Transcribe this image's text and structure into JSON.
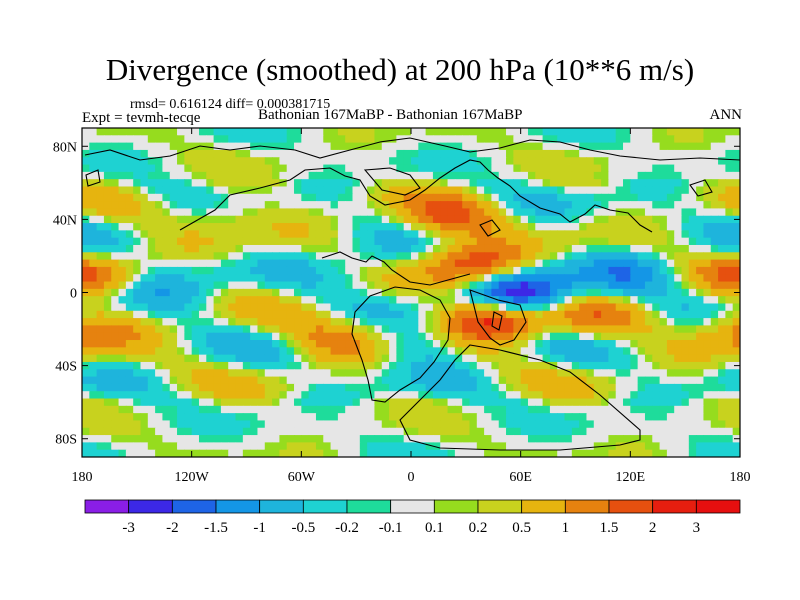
{
  "chart_data": {
    "type": "heatmap",
    "title": "Divergence (smoothed) at 200 hPa (10**6 m/s)",
    "stats": "rmsd= 0.616124 diff= 0.000381715",
    "left_label": "Expt = tevmh-tecqe",
    "center_label": "Bathonian 167MaBP - Bathonian 167MaBP",
    "right_label": "ANN",
    "x_ticks": [
      "180",
      "120W",
      "60W",
      "0",
      "60E",
      "120E",
      "180"
    ],
    "x_tick_values": [
      -180,
      -120,
      -60,
      0,
      60,
      120,
      180
    ],
    "y_ticks": [
      "80N",
      "40N",
      "0",
      "40S",
      "80S"
    ],
    "y_tick_values": [
      80,
      40,
      0,
      -40,
      -80
    ],
    "xlim": [
      -180,
      180
    ],
    "ylim": [
      -90,
      90
    ],
    "colorbar": {
      "labels": [
        "-3",
        "-2",
        "-1.5",
        "-1",
        "-0.5",
        "-0.2",
        "-0.1",
        "0.1",
        "0.2",
        "0.5",
        "1",
        "1.5",
        "2",
        "3"
      ],
      "levels": [
        -3,
        -2,
        -1.5,
        -1,
        -0.5,
        -0.2,
        -0.1,
        0.1,
        0.2,
        0.5,
        1,
        1.5,
        2,
        3
      ],
      "colors": [
        "#8a1ee6",
        "#3c28e6",
        "#1e64e6",
        "#1496e6",
        "#1eb4dc",
        "#1ed2d2",
        "#1edc9b",
        "#e6e6e6",
        "#96dc1e",
        "#c8d21e",
        "#e6b40f",
        "#e6820f",
        "#e6500f",
        "#e61e0f",
        "#e60f0f"
      ]
    },
    "field_features": [
      {
        "lon": 35,
        "lat": 15,
        "value": 2.0
      },
      {
        "lon": 45,
        "lat": -15,
        "value": 2.3
      },
      {
        "lon": 60,
        "lat": 0,
        "value": -2.6
      },
      {
        "lon": 20,
        "lat": 40,
        "value": 1.4
      },
      {
        "lon": -40,
        "lat": -25,
        "value": 1.0
      },
      {
        "lon": -175,
        "lat": -20,
        "value": 1.3
      },
      {
        "lon": -175,
        "lat": 10,
        "value": 1.1
      },
      {
        "lon": 120,
        "lat": 10,
        "value": -0.9
      },
      {
        "lon": -140,
        "lat": 0,
        "value": -0.8
      },
      {
        "lon": 100,
        "lat": -15,
        "value": 0.8
      },
      {
        "lon": -100,
        "lat": 45,
        "value": 0.6
      },
      {
        "lon": -20,
        "lat": 15,
        "value": -0.6
      },
      {
        "lon": 5,
        "lat": -30,
        "value": -0.7
      }
    ]
  }
}
